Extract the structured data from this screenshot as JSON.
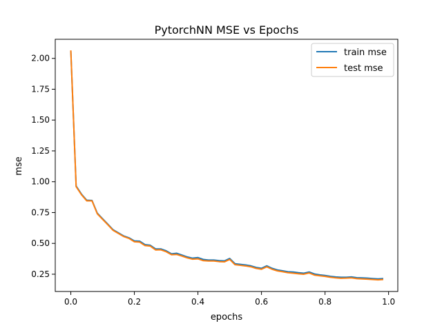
{
  "chart_data": {
    "type": "line",
    "title": "PytorchNN MSE vs Epochs",
    "xlabel": "epochs",
    "ylabel": "mse",
    "xlim": [
      -0.049,
      1.029
    ],
    "ylim": [
      0.11,
      2.155
    ],
    "xticks": [
      0.0,
      0.2,
      0.4,
      0.6,
      0.8,
      1.0
    ],
    "xtick_labels": [
      "0.0",
      "0.2",
      "0.4",
      "0.6",
      "0.8",
      "1.0"
    ],
    "yticks": [
      0.25,
      0.5,
      0.75,
      1.0,
      1.25,
      1.5,
      1.75,
      2.0
    ],
    "ytick_labels": [
      "0.25",
      "0.50",
      "0.75",
      "1.00",
      "1.25",
      "1.50",
      "1.75",
      "2.00"
    ],
    "grid": false,
    "legend_position": "top-right",
    "x": [
      0.0,
      0.0167,
      0.0333,
      0.05,
      0.0667,
      0.0833,
      0.1,
      0.1167,
      0.1333,
      0.15,
      0.1667,
      0.1833,
      0.2,
      0.2167,
      0.2333,
      0.25,
      0.2667,
      0.2833,
      0.3,
      0.3167,
      0.3333,
      0.35,
      0.3667,
      0.3833,
      0.4,
      0.4167,
      0.4333,
      0.45,
      0.4667,
      0.4833,
      0.5,
      0.5167,
      0.5333,
      0.55,
      0.5667,
      0.5833,
      0.6,
      0.6167,
      0.6333,
      0.65,
      0.6667,
      0.6833,
      0.7,
      0.7167,
      0.7333,
      0.75,
      0.7667,
      0.7833,
      0.8,
      0.8167,
      0.8333,
      0.85,
      0.8667,
      0.8833,
      0.9,
      0.9167,
      0.9333,
      0.95,
      0.9667,
      0.9833
    ],
    "series": [
      {
        "name": "train mse",
        "color": "#1f77b4",
        "values": [
          2.06,
          0.965,
          0.9,
          0.85,
          0.848,
          0.745,
          0.7,
          0.655,
          0.61,
          0.585,
          0.56,
          0.545,
          0.52,
          0.518,
          0.49,
          0.485,
          0.455,
          0.455,
          0.44,
          0.415,
          0.42,
          0.405,
          0.39,
          0.38,
          0.385,
          0.37,
          0.365,
          0.365,
          0.36,
          0.358,
          0.378,
          0.335,
          0.33,
          0.325,
          0.318,
          0.305,
          0.298,
          0.318,
          0.298,
          0.285,
          0.278,
          0.27,
          0.268,
          0.262,
          0.258,
          0.268,
          0.252,
          0.245,
          0.24,
          0.233,
          0.228,
          0.225,
          0.225,
          0.228,
          0.222,
          0.22,
          0.218,
          0.215,
          0.212,
          0.215
        ]
      },
      {
        "name": "test mse",
        "color": "#ff7f0e",
        "values": [
          2.065,
          0.96,
          0.895,
          0.845,
          0.845,
          0.74,
          0.695,
          0.65,
          0.605,
          0.58,
          0.555,
          0.54,
          0.513,
          0.51,
          0.482,
          0.478,
          0.447,
          0.448,
          0.432,
          0.408,
          0.41,
          0.397,
          0.382,
          0.372,
          0.375,
          0.36,
          0.357,
          0.357,
          0.352,
          0.35,
          0.37,
          0.327,
          0.322,
          0.317,
          0.31,
          0.297,
          0.29,
          0.31,
          0.29,
          0.277,
          0.27,
          0.262,
          0.258,
          0.253,
          0.25,
          0.26,
          0.243,
          0.237,
          0.232,
          0.225,
          0.22,
          0.217,
          0.218,
          0.22,
          0.214,
          0.212,
          0.21,
          0.207,
          0.204,
          0.207
        ]
      }
    ]
  }
}
